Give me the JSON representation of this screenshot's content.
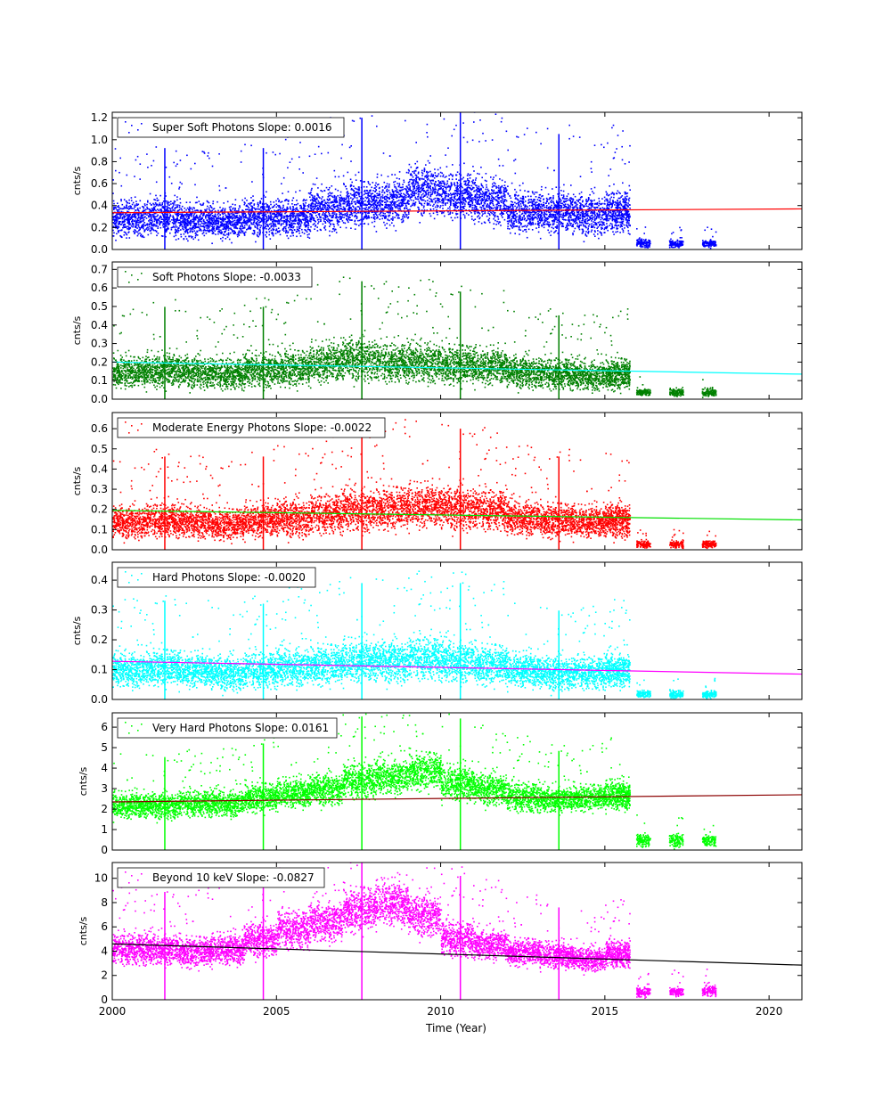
{
  "figure": {
    "xlabel": "Time (Year)",
    "x_ticks": [
      "2000",
      "2005",
      "2010",
      "2015",
      "2020"
    ]
  },
  "chart_data": [
    {
      "type": "scatter",
      "legend": "Super Soft Photons Slope: 0.0016",
      "ylabel": "cnts/s",
      "xlim": [
        2000,
        2021
      ],
      "ylim": [
        0,
        1.25
      ],
      "y_ticks": [
        "0.0",
        "0.2",
        "0.4",
        "0.6",
        "0.8",
        "1.0",
        "1.2"
      ],
      "y_tick_values": [
        0,
        0.2,
        0.4,
        0.6,
        0.8,
        1.0,
        1.2
      ],
      "point_color": "#0000ff",
      "fit_color": "#ff0000",
      "fit_line": {
        "x": [
          2000,
          2021
        ],
        "y": [
          0.335,
          0.37
        ]
      },
      "slope": 0.0016,
      "x": [
        2000.5,
        2001.5,
        2002.5,
        2003.5,
        2004.5,
        2005.5,
        2006.5,
        2007.5,
        2008.5,
        2009.5,
        2010.5,
        2011.5,
        2012.5,
        2013.5,
        2014.5,
        2015.5,
        2016.5,
        2017.5,
        2018.5
      ],
      "y": [
        0.28,
        0.3,
        0.27,
        0.26,
        0.3,
        0.3,
        0.37,
        0.42,
        0.44,
        0.55,
        0.5,
        0.45,
        0.35,
        0.35,
        0.32,
        0.35,
        0.06,
        0.06,
        0.06
      ],
      "spread": [
        0.22,
        0.24,
        0.22,
        0.22,
        0.24,
        0.25,
        0.28,
        0.3,
        0.3,
        0.32,
        0.3,
        0.3,
        0.27,
        0.27,
        0.26,
        0.27,
        0.05,
        0.05,
        0.05
      ]
    },
    {
      "type": "scatter",
      "legend": "Soft Photons Slope: -0.0033",
      "ylabel": "cnts/s",
      "xlim": [
        2000,
        2021
      ],
      "ylim": [
        0,
        0.74
      ],
      "y_ticks": [
        "0.0",
        "0.1",
        "0.2",
        "0.3",
        "0.4",
        "0.5",
        "0.6",
        "0.7"
      ],
      "y_tick_values": [
        0,
        0.1,
        0.2,
        0.3,
        0.4,
        0.5,
        0.6,
        0.7
      ],
      "point_color": "#008000",
      "fit_color": "#00ffff",
      "fit_line": {
        "x": [
          2000,
          2021
        ],
        "y": [
          0.2,
          0.135
        ]
      },
      "slope": -0.0033,
      "x": [
        2000.5,
        2001.5,
        2002.5,
        2003.5,
        2004.5,
        2005.5,
        2006.5,
        2007.5,
        2008.5,
        2009.5,
        2010.5,
        2011.5,
        2012.5,
        2013.5,
        2014.5,
        2015.5,
        2016.5,
        2017.5,
        2018.5
      ],
      "y": [
        0.15,
        0.16,
        0.15,
        0.14,
        0.16,
        0.17,
        0.2,
        0.22,
        0.2,
        0.2,
        0.19,
        0.18,
        0.15,
        0.14,
        0.13,
        0.14,
        0.04,
        0.04,
        0.04
      ],
      "spread": [
        0.12,
        0.13,
        0.12,
        0.12,
        0.13,
        0.14,
        0.15,
        0.16,
        0.15,
        0.15,
        0.15,
        0.14,
        0.12,
        0.12,
        0.11,
        0.12,
        0.03,
        0.03,
        0.03
      ]
    },
    {
      "type": "scatter",
      "legend": "Moderate Energy Photons Slope: -0.0022",
      "ylabel": "cnts/s",
      "xlim": [
        2000,
        2021
      ],
      "ylim": [
        0,
        0.68
      ],
      "y_ticks": [
        "0.0",
        "0.1",
        "0.2",
        "0.3",
        "0.4",
        "0.5",
        "0.6"
      ],
      "y_tick_values": [
        0,
        0.1,
        0.2,
        0.3,
        0.4,
        0.5,
        0.6
      ],
      "point_color": "#ff0000",
      "fit_color": "#00e000",
      "fit_line": {
        "x": [
          2000,
          2021
        ],
        "y": [
          0.195,
          0.148
        ]
      },
      "slope": -0.0022,
      "x": [
        2000.5,
        2001.5,
        2002.5,
        2003.5,
        2004.5,
        2005.5,
        2006.5,
        2007.5,
        2008.5,
        2009.5,
        2010.5,
        2011.5,
        2012.5,
        2013.5,
        2014.5,
        2015.5,
        2016.5,
        2017.5,
        2018.5
      ],
      "y": [
        0.14,
        0.15,
        0.14,
        0.13,
        0.15,
        0.16,
        0.18,
        0.2,
        0.21,
        0.22,
        0.21,
        0.2,
        0.16,
        0.15,
        0.14,
        0.15,
        0.03,
        0.03,
        0.03
      ],
      "spread": [
        0.11,
        0.12,
        0.11,
        0.11,
        0.12,
        0.13,
        0.14,
        0.15,
        0.15,
        0.15,
        0.15,
        0.14,
        0.12,
        0.12,
        0.11,
        0.12,
        0.025,
        0.025,
        0.025
      ]
    },
    {
      "type": "scatter",
      "legend": "Hard Photons Slope: -0.0020",
      "ylabel": "cnts/s",
      "xlim": [
        2000,
        2021
      ],
      "ylim": [
        0,
        0.46
      ],
      "y_ticks": [
        "0.0",
        "0.1",
        "0.2",
        "0.3",
        "0.4"
      ],
      "y_tick_values": [
        0,
        0.1,
        0.2,
        0.3,
        0.4
      ],
      "point_color": "#00ffff",
      "fit_color": "#ff00ff",
      "fit_line": {
        "x": [
          2000,
          2021
        ],
        "y": [
          0.128,
          0.085
        ]
      },
      "slope": -0.002,
      "x": [
        2000.5,
        2001.5,
        2002.5,
        2003.5,
        2004.5,
        2005.5,
        2006.5,
        2007.5,
        2008.5,
        2009.5,
        2010.5,
        2011.5,
        2012.5,
        2013.5,
        2014.5,
        2015.5,
        2016.5,
        2017.5,
        2018.5
      ],
      "y": [
        0.1,
        0.11,
        0.1,
        0.09,
        0.1,
        0.11,
        0.12,
        0.13,
        0.13,
        0.14,
        0.13,
        0.12,
        0.1,
        0.09,
        0.09,
        0.1,
        0.02,
        0.02,
        0.02
      ],
      "spread": [
        0.08,
        0.085,
        0.08,
        0.08,
        0.085,
        0.09,
        0.095,
        0.1,
        0.1,
        0.1,
        0.1,
        0.095,
        0.08,
        0.08,
        0.075,
        0.08,
        0.018,
        0.018,
        0.018
      ]
    },
    {
      "type": "scatter",
      "legend": "Very Hard Photons Slope: 0.0161",
      "ylabel": "cnts/s",
      "xlim": [
        2000,
        2021
      ],
      "ylim": [
        0,
        6.7
      ],
      "y_ticks": [
        "0",
        "1",
        "2",
        "3",
        "4",
        "5",
        "6"
      ],
      "y_tick_values": [
        0,
        1,
        2,
        3,
        4,
        5,
        6
      ],
      "point_color": "#00ff00",
      "fit_color": "#8b0000",
      "fit_line": {
        "x": [
          2000,
          2021
        ],
        "y": [
          2.35,
          2.7
        ]
      },
      "slope": 0.0161,
      "x": [
        2000.5,
        2001.5,
        2002.5,
        2003.5,
        2004.5,
        2005.5,
        2006.5,
        2007.5,
        2008.5,
        2009.5,
        2010.5,
        2011.5,
        2012.5,
        2013.5,
        2014.5,
        2015.5,
        2016.5,
        2017.5,
        2018.5
      ],
      "y": [
        2.2,
        2.2,
        2.3,
        2.3,
        2.6,
        2.8,
        3.0,
        3.4,
        3.6,
        3.9,
        3.3,
        3.0,
        2.6,
        2.5,
        2.6,
        2.7,
        0.5,
        0.5,
        0.5
      ],
      "spread": [
        0.9,
        0.9,
        0.9,
        0.9,
        1.0,
        1.0,
        1.1,
        1.2,
        1.2,
        1.3,
        1.2,
        1.1,
        1.0,
        0.9,
        0.9,
        1.0,
        0.45,
        0.45,
        0.45
      ]
    },
    {
      "type": "scatter",
      "legend": "Beyond 10 keV Slope: -0.0827",
      "ylabel": "cnts/s",
      "xlim": [
        2000,
        2021
      ],
      "ylim": [
        0,
        11.3
      ],
      "y_ticks": [
        "0",
        "2",
        "4",
        "6",
        "8",
        "10"
      ],
      "y_tick_values": [
        0,
        2,
        4,
        6,
        8,
        10
      ],
      "point_color": "#ff00ff",
      "fit_color": "#000000",
      "fit_line": {
        "x": [
          2000,
          2021
        ],
        "y": [
          4.6,
          2.85
        ]
      },
      "slope": -0.0827,
      "x": [
        2000.5,
        2001.5,
        2002.5,
        2003.5,
        2004.5,
        2005.5,
        2006.5,
        2007.5,
        2008.5,
        2009.5,
        2010.5,
        2011.5,
        2012.5,
        2013.5,
        2014.5,
        2015.5,
        2016.5,
        2017.5,
        2018.5
      ],
      "y": [
        4.2,
        4.2,
        4.0,
        4.2,
        5.0,
        5.8,
        6.5,
        7.5,
        8.0,
        7.0,
        5.0,
        4.6,
        4.0,
        3.7,
        3.4,
        3.8,
        0.7,
        0.7,
        0.8
      ],
      "spread": [
        1.8,
        1.8,
        1.8,
        1.8,
        2.0,
        2.2,
        2.4,
        2.6,
        2.6,
        2.4,
        2.0,
        1.8,
        1.6,
        1.5,
        1.4,
        1.5,
        0.6,
        0.6,
        0.7
      ]
    }
  ]
}
